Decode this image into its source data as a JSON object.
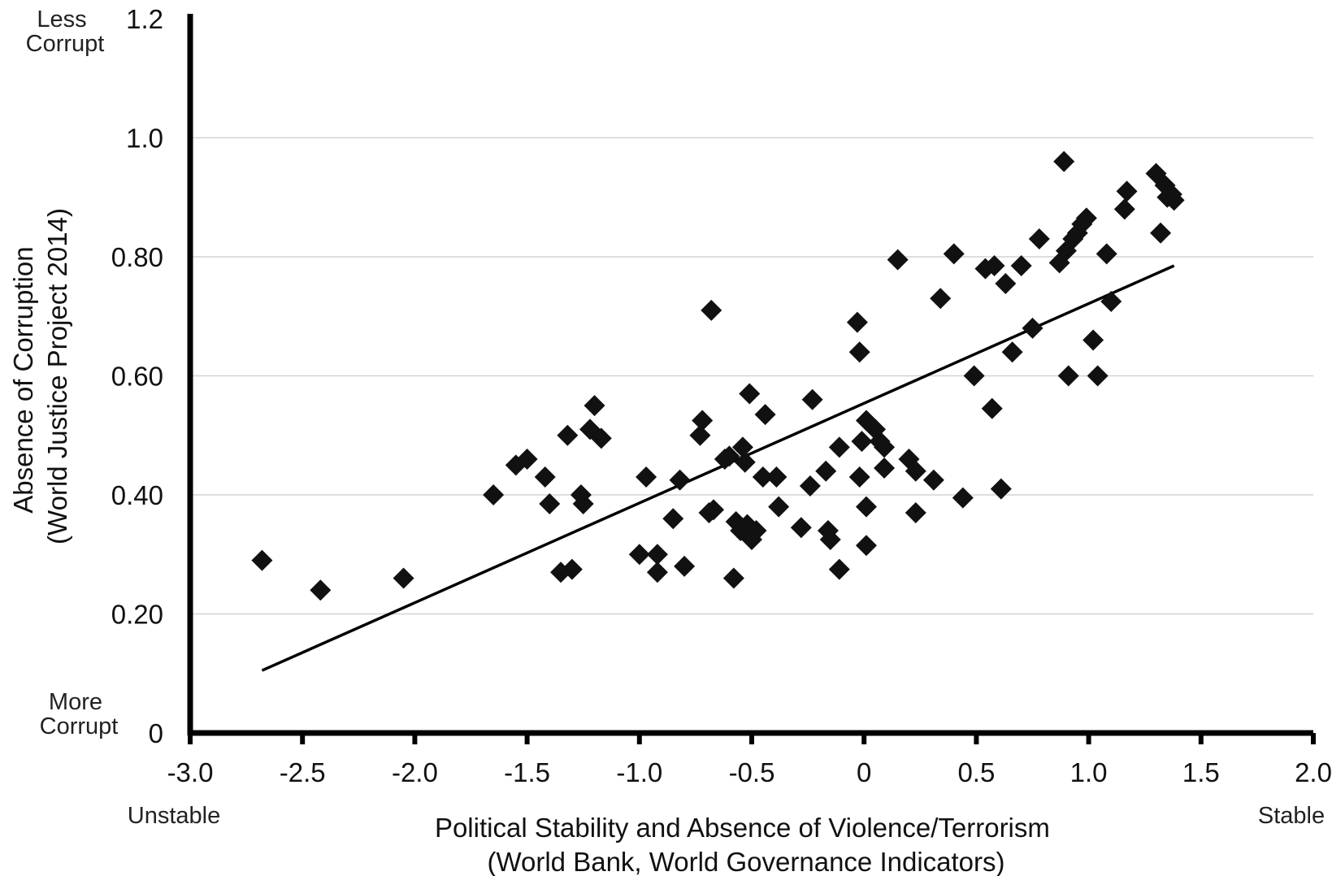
{
  "chart_data": {
    "type": "scatter",
    "title": "",
    "xlabel_lines": [
      "Political Stability and Absence of Violence/Terrorism",
      "(World Bank, World Governance Indicators)"
    ],
    "ylabel_lines": [
      "Absence of Corruption",
      "(World Justice Project 2014)"
    ],
    "xlim": [
      -3.0,
      2.0
    ],
    "ylim": [
      0,
      1.2
    ],
    "x_ticks": [
      {
        "value": -3.0,
        "label": "-3.0"
      },
      {
        "value": -2.5,
        "label": "-2.5"
      },
      {
        "value": -2.0,
        "label": "-2.0"
      },
      {
        "value": -1.5,
        "label": "-1.5"
      },
      {
        "value": -1.0,
        "label": "-1.0"
      },
      {
        "value": -0.5,
        "label": "-0.5"
      },
      {
        "value": 0,
        "label": "0"
      },
      {
        "value": 0.5,
        "label": "0.5"
      },
      {
        "value": 1.0,
        "label": "1.0"
      },
      {
        "value": 1.5,
        "label": "1.5"
      },
      {
        "value": 2.0,
        "label": "2.0"
      }
    ],
    "y_ticks": [
      {
        "value": 0,
        "label": "0"
      },
      {
        "value": 0.2,
        "label": "0.20"
      },
      {
        "value": 0.4,
        "label": "0.40"
      },
      {
        "value": 0.6,
        "label": "0.60"
      },
      {
        "value": 0.8,
        "label": "0.80"
      },
      {
        "value": 1.0,
        "label": "1.0"
      },
      {
        "value": 1.2,
        "label": "1.2"
      }
    ],
    "grid": "horizontal",
    "end_labels": {
      "y_top": [
        "Less",
        "Corrupt"
      ],
      "y_bottom": [
        "More",
        "Corrupt"
      ],
      "x_left": "Unstable",
      "x_right": "Stable"
    },
    "trendline": {
      "x": [
        -2.68,
        1.38
      ],
      "y": [
        0.105,
        0.785
      ]
    },
    "points": [
      {
        "x": -2.68,
        "y": 0.29
      },
      {
        "x": -2.42,
        "y": 0.24
      },
      {
        "x": -2.05,
        "y": 0.26
      },
      {
        "x": -1.65,
        "y": 0.4
      },
      {
        "x": -1.55,
        "y": 0.45
      },
      {
        "x": -1.5,
        "y": 0.46
      },
      {
        "x": -1.42,
        "y": 0.43
      },
      {
        "x": -1.4,
        "y": 0.385
      },
      {
        "x": -1.35,
        "y": 0.27
      },
      {
        "x": -1.32,
        "y": 0.5
      },
      {
        "x": -1.3,
        "y": 0.275
      },
      {
        "x": -1.26,
        "y": 0.4
      },
      {
        "x": -1.25,
        "y": 0.385
      },
      {
        "x": -1.22,
        "y": 0.51
      },
      {
        "x": -1.2,
        "y": 0.55
      },
      {
        "x": -1.17,
        "y": 0.495
      },
      {
        "x": -1.0,
        "y": 0.3
      },
      {
        "x": -0.97,
        "y": 0.43
      },
      {
        "x": -0.92,
        "y": 0.3
      },
      {
        "x": -0.92,
        "y": 0.27
      },
      {
        "x": -0.85,
        "y": 0.36
      },
      {
        "x": -0.82,
        "y": 0.425
      },
      {
        "x": -0.8,
        "y": 0.28
      },
      {
        "x": -0.73,
        "y": 0.5
      },
      {
        "x": -0.72,
        "y": 0.525
      },
      {
        "x": -0.69,
        "y": 0.37
      },
      {
        "x": -0.67,
        "y": 0.375
      },
      {
        "x": -0.68,
        "y": 0.71
      },
      {
        "x": -0.62,
        "y": 0.46
      },
      {
        "x": -0.6,
        "y": 0.465
      },
      {
        "x": -0.58,
        "y": 0.26
      },
      {
        "x": -0.57,
        "y": 0.355
      },
      {
        "x": -0.55,
        "y": 0.34
      },
      {
        "x": -0.54,
        "y": 0.48
      },
      {
        "x": -0.53,
        "y": 0.455
      },
      {
        "x": -0.52,
        "y": 0.35
      },
      {
        "x": -0.51,
        "y": 0.57
      },
      {
        "x": -0.5,
        "y": 0.325
      },
      {
        "x": -0.48,
        "y": 0.34
      },
      {
        "x": -0.45,
        "y": 0.43
      },
      {
        "x": -0.44,
        "y": 0.535
      },
      {
        "x": -0.39,
        "y": 0.43
      },
      {
        "x": -0.38,
        "y": 0.38
      },
      {
        "x": -0.28,
        "y": 0.345
      },
      {
        "x": -0.24,
        "y": 0.415
      },
      {
        "x": -0.23,
        "y": 0.56
      },
      {
        "x": -0.17,
        "y": 0.44
      },
      {
        "x": -0.16,
        "y": 0.34
      },
      {
        "x": -0.15,
        "y": 0.325
      },
      {
        "x": -0.11,
        "y": 0.48
      },
      {
        "x": -0.11,
        "y": 0.275
      },
      {
        "x": -0.03,
        "y": 0.69
      },
      {
        "x": -0.02,
        "y": 0.64
      },
      {
        "x": -0.02,
        "y": 0.43
      },
      {
        "x": -0.01,
        "y": 0.49
      },
      {
        "x": 0.01,
        "y": 0.525
      },
      {
        "x": 0.01,
        "y": 0.38
      },
      {
        "x": 0.01,
        "y": 0.315
      },
      {
        "x": 0.05,
        "y": 0.51
      },
      {
        "x": 0.07,
        "y": 0.49
      },
      {
        "x": 0.09,
        "y": 0.445
      },
      {
        "x": 0.09,
        "y": 0.48
      },
      {
        "x": 0.15,
        "y": 0.795
      },
      {
        "x": 0.2,
        "y": 0.46
      },
      {
        "x": 0.23,
        "y": 0.44
      },
      {
        "x": 0.23,
        "y": 0.37
      },
      {
        "x": 0.31,
        "y": 0.425
      },
      {
        "x": 0.34,
        "y": 0.73
      },
      {
        "x": 0.4,
        "y": 0.805
      },
      {
        "x": 0.44,
        "y": 0.395
      },
      {
        "x": 0.49,
        "y": 0.6
      },
      {
        "x": 0.54,
        "y": 0.78
      },
      {
        "x": 0.57,
        "y": 0.545
      },
      {
        "x": 0.58,
        "y": 0.785
      },
      {
        "x": 0.61,
        "y": 0.41
      },
      {
        "x": 0.63,
        "y": 0.755
      },
      {
        "x": 0.66,
        "y": 0.64
      },
      {
        "x": 0.7,
        "y": 0.785
      },
      {
        "x": 0.75,
        "y": 0.68
      },
      {
        "x": 0.78,
        "y": 0.83
      },
      {
        "x": 0.87,
        "y": 0.79
      },
      {
        "x": 0.89,
        "y": 0.96
      },
      {
        "x": 0.9,
        "y": 0.81
      },
      {
        "x": 0.91,
        "y": 0.6
      },
      {
        "x": 0.93,
        "y": 0.83
      },
      {
        "x": 0.95,
        "y": 0.84
      },
      {
        "x": 0.97,
        "y": 0.855
      },
      {
        "x": 0.99,
        "y": 0.865
      },
      {
        "x": 1.02,
        "y": 0.66
      },
      {
        "x": 1.04,
        "y": 0.6
      },
      {
        "x": 1.08,
        "y": 0.805
      },
      {
        "x": 1.1,
        "y": 0.725
      },
      {
        "x": 1.16,
        "y": 0.88
      },
      {
        "x": 1.17,
        "y": 0.91
      },
      {
        "x": 1.3,
        "y": 0.94
      },
      {
        "x": 1.32,
        "y": 0.84
      },
      {
        "x": 1.34,
        "y": 0.92
      },
      {
        "x": 1.35,
        "y": 0.9
      },
      {
        "x": 1.37,
        "y": 0.905
      },
      {
        "x": 1.38,
        "y": 0.895
      }
    ]
  }
}
